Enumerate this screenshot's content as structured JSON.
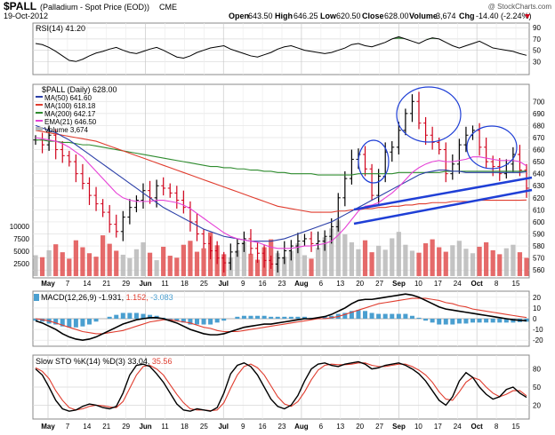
{
  "header": {
    "symbol": "$PALL",
    "name": "(Palladium - Spot Price (EOD))",
    "exchange": "CME",
    "date": "19-Oct-2012",
    "watermark": "@ StockCharts.com",
    "quote": {
      "open_label": "Open",
      "open": "643.50",
      "high_label": "High",
      "high": "646.25",
      "low_label": "Low",
      "low": "620.50",
      "close_label": "Close",
      "close": "628.00",
      "volume_label": "Volume",
      "volume": "3,674",
      "chg_label": "Chg",
      "chg": "-14.40 (-2.24%)"
    }
  },
  "colors": {
    "price_bar": "#000000",
    "price_bar_down": "#d0021b",
    "ma50": "#2b3fa8",
    "ma100": "#e03c2e",
    "ma200": "#2e8b2e",
    "ema21": "#e640d6",
    "volume": "#b8b8b8",
    "volume_down": "#e05050",
    "trendline": "#1f3fd6",
    "circle": "#1f3fd6",
    "rsi_fill": "#3a8a3a",
    "macd_line": "#000000",
    "signal_line": "#e03c2e",
    "histogram": "#4a9fd0",
    "sto_k": "#000000",
    "sto_d": "#e03c2e"
  },
  "chart_data": [
    {
      "type": "line",
      "panel": "rsi",
      "label": "RSI(14) 41.20",
      "y_ticks": [
        30,
        50,
        70,
        90
      ],
      "ylim": [
        10,
        95
      ],
      "values": [
        62,
        60,
        55,
        48,
        40,
        32,
        30,
        34,
        40,
        45,
        48,
        52,
        55,
        50,
        46,
        44,
        48,
        52,
        55,
        50,
        44,
        38,
        36,
        40,
        46,
        50,
        54,
        56,
        58,
        52,
        48,
        44,
        40,
        38,
        42,
        46,
        52,
        56,
        58,
        54,
        50,
        48,
        46,
        44,
        46,
        50,
        54,
        60,
        62,
        58,
        56,
        60,
        64,
        70,
        74,
        70,
        66,
        62,
        68,
        72,
        70,
        64,
        58,
        54,
        58,
        62,
        66,
        60,
        54,
        52,
        50,
        48,
        44,
        41
      ]
    },
    {
      "type": "bar",
      "panel": "price",
      "label": "$PALL (Daily) 628.00",
      "legend": [
        {
          "name": "MA(50) 641.60",
          "color_key": "ma50"
        },
        {
          "name": "MA(100) 618.18",
          "color_key": "ma100"
        },
        {
          "name": "MA(200) 642.17",
          "color_key": "ma200"
        },
        {
          "name": "EMA(21) 646.50",
          "color_key": "ema21"
        },
        {
          "name": "Volume 3,674",
          "color_key": "volume"
        }
      ],
      "y_ticks": [
        560,
        570,
        580,
        590,
        600,
        610,
        620,
        630,
        640,
        650,
        660,
        670,
        680,
        690,
        700
      ],
      "ylim": [
        555,
        712
      ],
      "volume_ticks": [
        {
          "v": 2500,
          "label": "2500"
        },
        {
          "v": 5000,
          "label": "5000"
        },
        {
          "v": 7500,
          "label": "7500"
        },
        {
          "v": 10000,
          "label": "10000"
        }
      ],
      "volume_max": 12500,
      "x_labels": [
        "May",
        "7",
        "14",
        "21",
        "29",
        "Jun",
        "11",
        "18",
        "25",
        "Jul",
        "9",
        "16",
        "23",
        "Aug",
        "6",
        "13",
        "20",
        "27",
        "Sep",
        "10",
        "17",
        "24",
        "Oct",
        "8",
        "15"
      ],
      "closes": [
        668,
        664,
        672,
        660,
        655,
        650,
        640,
        632,
        622,
        615,
        608,
        598,
        592,
        604,
        612,
        618,
        626,
        620,
        630,
        628,
        624,
        618,
        612,
        600,
        590,
        582,
        576,
        570,
        566,
        575,
        582,
        586,
        578,
        574,
        568,
        565,
        570,
        576,
        580,
        584,
        586,
        582,
        584,
        588,
        596,
        620,
        636,
        652,
        656,
        644,
        622,
        638,
        658,
        662,
        676,
        690,
        700,
        682,
        672,
        666,
        660,
        640,
        648,
        664,
        672,
        676,
        662,
        650,
        646,
        640,
        648,
        656,
        643,
        628
      ],
      "series": {
        "ma50": [
          680,
          678,
          676,
          674,
          671,
          668,
          664,
          660,
          656,
          652,
          648,
          644,
          640,
          636,
          632,
          628,
          624,
          620,
          616,
          612,
          609,
          606,
          603,
          600,
          597,
          594,
          592,
          590,
          588,
          587,
          586,
          585,
          584,
          584,
          584,
          584,
          585,
          586,
          588,
          590,
          592,
          594,
          596,
          598,
          600,
          603,
          606,
          609,
          612,
          615,
          618,
          621,
          624,
          627,
          630,
          633,
          636,
          639,
          641,
          642,
          643,
          643,
          642,
          642,
          641,
          641,
          641,
          641,
          641,
          641,
          641,
          641,
          641,
          641.6
        ],
        "ma100": [
          676,
          675,
          674,
          673,
          672,
          671,
          670,
          669,
          668,
          667,
          665,
          663,
          661,
          659,
          657,
          655,
          653,
          651,
          649,
          647,
          645,
          643,
          641,
          639,
          637,
          635,
          633,
          631,
          629,
          627,
          625,
          623,
          621,
          619,
          617,
          615,
          613,
          612,
          611,
          610,
          609,
          608,
          608,
          608,
          608,
          609,
          609,
          610,
          610,
          611,
          611,
          612,
          612,
          613,
          613,
          614,
          614,
          615,
          615,
          616,
          616,
          616,
          617,
          617,
          617,
          617,
          618,
          618,
          618,
          618,
          618,
          618,
          618,
          618.18
        ],
        "ma200": [
          668,
          668,
          667,
          667,
          666,
          666,
          665,
          664,
          664,
          663,
          662,
          661,
          660,
          659,
          658,
          657,
          656,
          655,
          654,
          653,
          652,
          651,
          650,
          649,
          648,
          647,
          646,
          646,
          645,
          645,
          644,
          644,
          643,
          643,
          642,
          642,
          641,
          641,
          640,
          640,
          640,
          640,
          639,
          639,
          639,
          639,
          639,
          639,
          640,
          640,
          640,
          640,
          640,
          640,
          641,
          641,
          641,
          641,
          641,
          641,
          641,
          642,
          642,
          642,
          642,
          642,
          642,
          642,
          642,
          642,
          642,
          642,
          642,
          642.17
        ],
        "ema21": [
          670,
          669,
          668,
          667,
          665,
          662,
          658,
          654,
          648,
          642,
          636,
          630,
          624,
          620,
          618,
          617,
          617,
          617,
          618,
          618,
          617,
          616,
          614,
          611,
          607,
          603,
          599,
          595,
          591,
          588,
          586,
          585,
          584,
          583,
          581,
          579,
          578,
          578,
          578,
          579,
          580,
          580,
          581,
          582,
          584,
          589,
          595,
          602,
          609,
          613,
          614,
          616,
          620,
          624,
          629,
          635,
          641,
          645,
          648,
          650,
          651,
          650,
          650,
          651,
          652,
          654,
          654,
          653,
          652,
          651,
          651,
          651,
          650,
          646.5
        ]
      },
      "volumes": [
        4200,
        3800,
        5200,
        6400,
        4800,
        3500,
        7200,
        5800,
        4600,
        3900,
        8200,
        6500,
        5100,
        4300,
        3600,
        5400,
        6800,
        4700,
        3200,
        5900,
        4100,
        3700,
        6300,
        7100,
        4900,
        5600,
        8800,
        6200,
        4400,
        3800,
        5200,
        6900,
        4500,
        3300,
        5800,
        7400,
        4600,
        3900,
        5100,
        6600,
        4200,
        3500,
        5700,
        7800,
        9600,
        11200,
        8400,
        6800,
        5400,
        7200,
        4800,
        6100,
        5300,
        7600,
        8900,
        6300,
        5100,
        4700,
        6600,
        7400,
        5800,
        4900,
        6200,
        7100,
        5500,
        4600,
        5900,
        6800,
        5200,
        4400,
        5600,
        6300,
        4800,
        3674
      ]
    },
    {
      "type": "line",
      "panel": "macd",
      "label": "MACD(12,26,9) -1.931, 1.152, -3.083",
      "label_parts": {
        "prefix": "MACD(12,26,9)",
        "macd": "-1.931,",
        "signal": "1.152,",
        "hist": "-3.083"
      },
      "y_ticks": [
        -20,
        -10,
        0,
        10,
        20
      ],
      "ylim": [
        -24,
        24
      ],
      "macd": [
        -2,
        -4,
        -7,
        -10,
        -14,
        -17,
        -19,
        -20,
        -19,
        -17,
        -14,
        -11,
        -8,
        -5,
        -3,
        -1,
        0,
        1,
        1,
        0,
        -2,
        -4,
        -7,
        -10,
        -12,
        -14,
        -15,
        -15,
        -14,
        -12,
        -10,
        -8,
        -7,
        -6,
        -5,
        -5,
        -4,
        -3,
        -2,
        -1,
        0,
        0,
        1,
        2,
        4,
        7,
        10,
        14,
        17,
        18,
        18,
        19,
        20,
        21,
        22,
        23,
        22,
        20,
        17,
        14,
        11,
        9,
        8,
        7,
        6,
        5,
        4,
        3,
        2,
        1,
        0,
        -1,
        -1.5,
        -1.931
      ],
      "signal": [
        0,
        -1,
        -2,
        -4,
        -6,
        -8,
        -10,
        -12,
        -13,
        -14,
        -14,
        -13,
        -12,
        -11,
        -9,
        -7,
        -5,
        -3,
        -2,
        -1,
        -1,
        -2,
        -3,
        -4,
        -6,
        -8,
        -9,
        -11,
        -12,
        -12,
        -12,
        -11,
        -10,
        -9,
        -8,
        -7,
        -6,
        -5,
        -4,
        -3,
        -2,
        -1,
        0,
        0,
        1,
        2,
        4,
        6,
        8,
        10,
        12,
        14,
        15,
        16,
        17,
        18,
        19,
        19,
        19,
        18,
        17,
        15,
        14,
        12,
        11,
        9,
        8,
        7,
        6,
        5,
        4,
        3,
        2,
        1.152
      ]
    },
    {
      "type": "line",
      "panel": "sto",
      "label": "Slow STO %K(14) %D(3) 33.04, 35.56",
      "label_parts": {
        "prefix": "Slow STO %K(14) %D(3)",
        "k": "33.04,",
        "d": "35.56"
      },
      "y_ticks": [
        20,
        50,
        80
      ],
      "ylim": [
        0,
        100
      ],
      "k": [
        80,
        70,
        50,
        28,
        14,
        10,
        12,
        18,
        22,
        20,
        16,
        14,
        18,
        40,
        70,
        86,
        88,
        84,
        72,
        58,
        40,
        22,
        12,
        10,
        14,
        12,
        10,
        16,
        40,
        72,
        86,
        90,
        84,
        70,
        50,
        30,
        18,
        14,
        20,
        36,
        60,
        80,
        88,
        90,
        86,
        84,
        88,
        90,
        92,
        88,
        80,
        82,
        86,
        88,
        90,
        86,
        80,
        72,
        60,
        44,
        28,
        20,
        34,
        60,
        74,
        66,
        50,
        38,
        30,
        34,
        46,
        50,
        40,
        33.04
      ],
      "d": [
        82,
        76,
        64,
        44,
        28,
        16,
        12,
        14,
        18,
        20,
        19,
        17,
        16,
        26,
        48,
        70,
        84,
        86,
        80,
        70,
        54,
        38,
        24,
        14,
        12,
        12,
        11,
        12,
        24,
        48,
        70,
        84,
        88,
        82,
        70,
        52,
        34,
        22,
        18,
        26,
        42,
        62,
        78,
        86,
        88,
        87,
        87,
        88,
        90,
        90,
        86,
        84,
        84,
        86,
        88,
        88,
        84,
        78,
        70,
        58,
        42,
        30,
        28,
        42,
        58,
        66,
        62,
        50,
        40,
        34,
        38,
        44,
        44,
        35.56
      ]
    }
  ]
}
